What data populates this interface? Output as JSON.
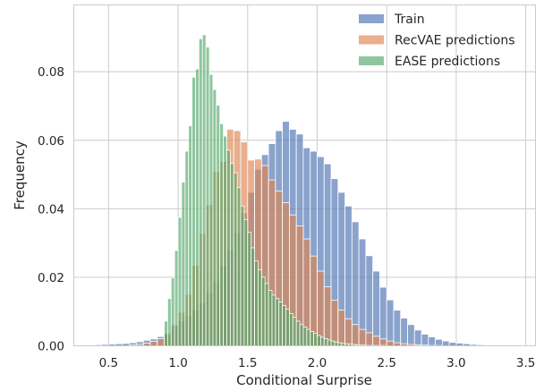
{
  "chart_data": {
    "type": "bar",
    "xlabel": "Conditional Surprise",
    "ylabel": "Frequency",
    "xlim": [
      0.25,
      3.57
    ],
    "ylim": [
      0,
      0.0995
    ],
    "xticks": [
      0.5,
      1.0,
      1.5,
      2.0,
      2.5,
      3.0,
      3.5
    ],
    "xtick_labels": [
      "0.5",
      "1.0",
      "1.5",
      "2.0",
      "2.5",
      "3.0",
      "3.5"
    ],
    "yticks": [
      0.0,
      0.02,
      0.04,
      0.06,
      0.08
    ],
    "ytick_labels": [
      "0.00",
      "0.02",
      "0.04",
      "0.06",
      "0.08"
    ],
    "grid": true,
    "legend_position": "top-right",
    "series": [
      {
        "name": "Train",
        "color": "#4c72b0",
        "opacity": 0.65,
        "bin_start": 0.3,
        "bin_width": 0.05,
        "values": [
          0.0002,
          0.0002,
          0.0003,
          0.0004,
          0.0005,
          0.0006,
          0.0007,
          0.0009,
          0.0012,
          0.0016,
          0.002,
          0.0027,
          0.0038,
          0.0057,
          0.0073,
          0.0087,
          0.0105,
          0.0125,
          0.0155,
          0.019,
          0.0233,
          0.028,
          0.033,
          0.0388,
          0.0448,
          0.0515,
          0.0558,
          0.059,
          0.0628,
          0.0655,
          0.0632,
          0.0618,
          0.0578,
          0.0568,
          0.0552,
          0.0531,
          0.0488,
          0.0448,
          0.0408,
          0.0362,
          0.0312,
          0.0263,
          0.0218,
          0.0171,
          0.0134,
          0.0104,
          0.0081,
          0.0062,
          0.0046,
          0.0034,
          0.0026,
          0.0019,
          0.0014,
          0.001,
          0.0008,
          0.0006,
          0.0004,
          0.0003,
          0.0002,
          0.0002,
          0.0001,
          0.0001,
          0.0001,
          0.0001
        ]
      },
      {
        "name": "RecVAE predictions",
        "color": "#dd8452",
        "opacity": 0.65,
        "bin_start": 0.3,
        "bin_width": 0.05,
        "values": [
          0,
          0,
          0,
          0,
          0,
          0,
          0,
          0.0002,
          0.0004,
          0.0008,
          0.0013,
          0.0021,
          0.0035,
          0.0062,
          0.0098,
          0.015,
          0.0235,
          0.0328,
          0.0412,
          0.0508,
          0.0538,
          0.0632,
          0.0628,
          0.0595,
          0.0542,
          0.0545,
          0.0526,
          0.0484,
          0.0452,
          0.0418,
          0.0382,
          0.035,
          0.0312,
          0.0262,
          0.0218,
          0.0172,
          0.0133,
          0.0104,
          0.0079,
          0.0062,
          0.0048,
          0.0038,
          0.0028,
          0.002,
          0.0014,
          0.0009,
          0.0006,
          0.0004,
          0.0003,
          0.0002,
          0.0001,
          0.0001,
          0,
          0,
          0,
          0,
          0,
          0,
          0,
          0,
          0,
          0,
          0,
          0
        ]
      },
      {
        "name": "EASE predictions",
        "color": "#55a868",
        "opacity": 0.65,
        "bin_start": 0.9,
        "bin_width": 0.025,
        "values": [
          0.0072,
          0.0138,
          0.0198,
          0.0278,
          0.0375,
          0.0478,
          0.0568,
          0.0642,
          0.0784,
          0.0808,
          0.0896,
          0.0908,
          0.0872,
          0.0792,
          0.0748,
          0.0702,
          0.0648,
          0.0612,
          0.0571,
          0.0532,
          0.0505,
          0.0462,
          0.0408,
          0.0368,
          0.0331,
          0.0286,
          0.0248,
          0.0222,
          0.0201,
          0.0182,
          0.0162,
          0.0148,
          0.0138,
          0.0128,
          0.0118,
          0.0107,
          0.0094,
          0.0083,
          0.0072,
          0.0062,
          0.0055,
          0.0048,
          0.0042,
          0.0036,
          0.003,
          0.0025,
          0.0021,
          0.0017,
          0.0014,
          0.0011,
          0.0009,
          0.0007,
          0.0006,
          0.0005,
          0.0004,
          0.0003,
          0.0002,
          0.0002,
          0.0001,
          0.0001,
          0.0001,
          0.0001,
          0.0001,
          0.0001
        ]
      }
    ]
  }
}
